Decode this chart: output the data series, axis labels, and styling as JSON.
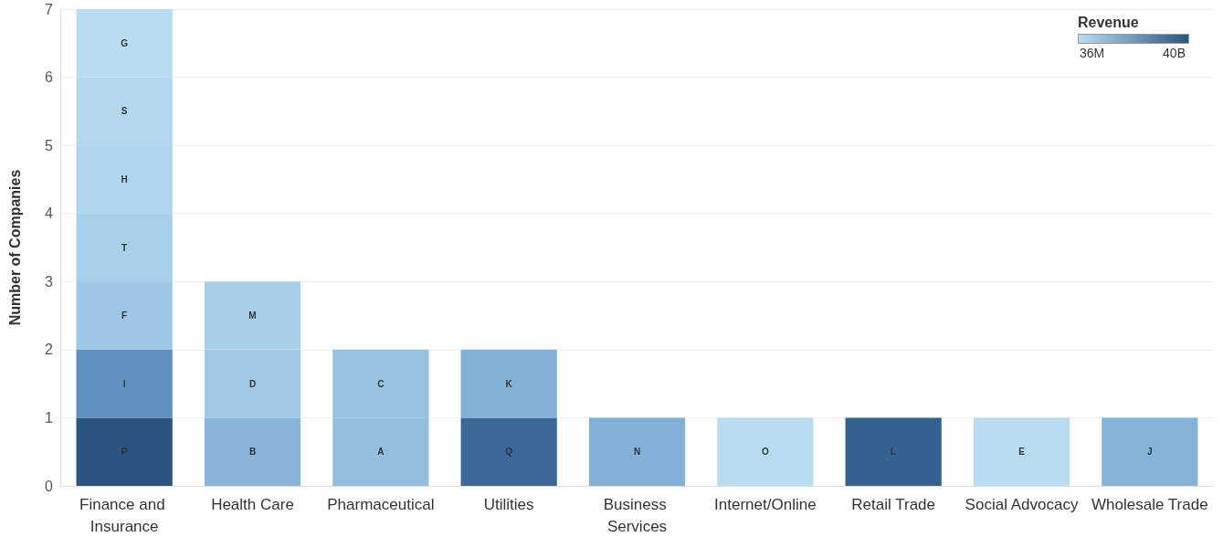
{
  "chart_data": {
    "type": "bar",
    "stacked": true,
    "ylabel": "Number of Companies",
    "clabel": "Revenue",
    "annotations": [
      "36M",
      "40B"
    ],
    "categories": [
      "Finance and Insurance",
      "Health Care",
      "Pharmaceutical",
      "Utilities",
      "Business Services",
      "Internet/Online",
      "Retail Trade",
      "Social Advocacy",
      "Wholesale Trade"
    ],
    "series": [
      {
        "values": [
          1,
          1,
          1,
          1,
          1,
          1,
          1,
          1,
          1
        ],
        "value_labels": [
          "P",
          "B",
          "A",
          "Q",
          "N",
          "O",
          "L",
          "E",
          "J"
        ],
        "colors": [
          "#2b5580",
          "#8ab4d8",
          "#94bedf",
          "#3b6899",
          "#82b0d6",
          "#b8dcf0",
          "#34618f",
          "#b8dcf0",
          "#85b3d8"
        ]
      },
      {
        "values": [
          1,
          1,
          1,
          1,
          null,
          null,
          null,
          null,
          null
        ],
        "value_labels": [
          "I",
          "D",
          "C",
          "K",
          null,
          null,
          null,
          null,
          null
        ],
        "colors": [
          "#6090bd",
          "#a0c8e5",
          "#98c2e2",
          "#83b1d6",
          null,
          null,
          null,
          null,
          null
        ]
      },
      {
        "values": [
          1,
          1,
          null,
          null,
          null,
          null,
          null,
          null,
          null
        ],
        "value_labels": [
          "F",
          "M",
          null,
          null,
          null,
          null,
          null,
          null,
          null
        ],
        "colors": [
          "#9ec7e5",
          "#a8cfea",
          null,
          null,
          null,
          null,
          null,
          null,
          null
        ]
      },
      {
        "values": [
          1,
          null,
          null,
          null,
          null,
          null,
          null,
          null,
          null
        ],
        "value_labels": [
          "T",
          null,
          null,
          null,
          null,
          null,
          null,
          null,
          null
        ],
        "colors": [
          "#a8d0ea",
          null,
          null,
          null,
          null,
          null,
          null,
          null,
          null
        ]
      },
      {
        "values": [
          1,
          null,
          null,
          null,
          null,
          null,
          null,
          null,
          null
        ],
        "value_labels": [
          "H",
          null,
          null,
          null,
          null,
          null,
          null,
          null,
          null
        ],
        "colors": [
          "#b0d5ee",
          null,
          null,
          null,
          null,
          null,
          null,
          null,
          null
        ]
      },
      {
        "values": [
          1,
          null,
          null,
          null,
          null,
          null,
          null,
          null,
          null
        ],
        "value_labels": [
          "S",
          null,
          null,
          null,
          null,
          null,
          null,
          null,
          null
        ],
        "colors": [
          "#b4d8ef",
          null,
          null,
          null,
          null,
          null,
          null,
          null,
          null
        ]
      },
      {
        "values": [
          1,
          null,
          null,
          null,
          null,
          null,
          null,
          null,
          null
        ],
        "value_labels": [
          "G",
          null,
          null,
          null,
          null,
          null,
          null,
          null,
          null
        ],
        "colors": [
          "#b8dcf0",
          null,
          null,
          null,
          null,
          null,
          null,
          null,
          null
        ]
      }
    ],
    "ylim": [
      0,
      7
    ],
    "yticks": [
      0,
      1,
      2,
      3,
      4,
      5,
      6,
      7
    ],
    "grid": "y"
  }
}
